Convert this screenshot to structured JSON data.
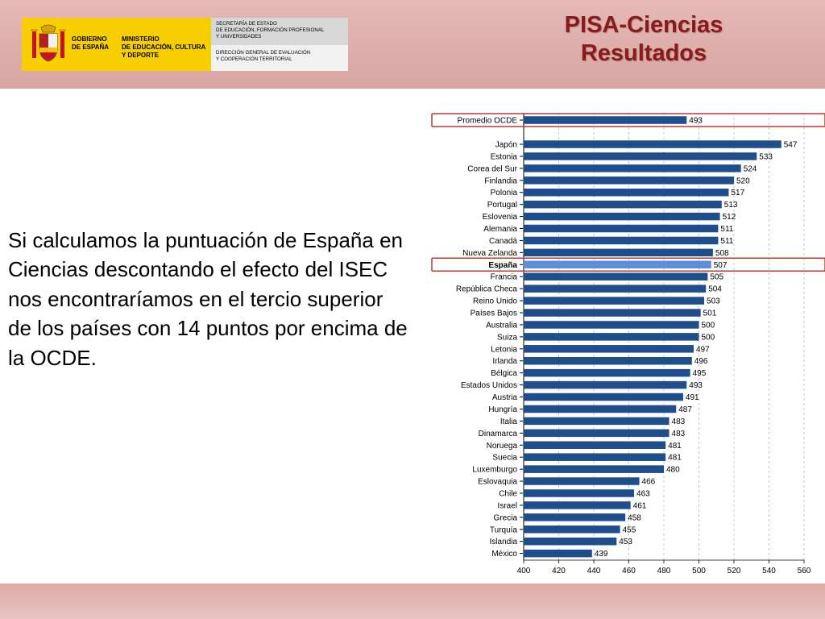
{
  "header": {
    "logo_gov": "GOBIERNO\nDE ESPAÑA",
    "logo_ministry": "MINISTERIO\nDE EDUCACIÓN, CULTURA\nY DEPORTE",
    "logo_secretary": "SECRETARÍA DE ESTADO\nDE EDUCACIÓN, FORMACIÓN PROFESIONAL\nY UNIVERSIDADES",
    "logo_direction": "DIRECCIÓN GENERAL DE EVALUACIÓN\nY COOPERACIÓN TERRITORIAL",
    "title_line1": "PISA-Ciencias",
    "title_line2": "Resultados"
  },
  "body_text": "Si calculamos la puntuación de España en Ciencias descontando el efecto del ISEC nos encontraríamos en el tercio superior de los países con 14 puntos por encima de la OCDE.",
  "colors": {
    "bar": "#1f4e8c",
    "highlight_bar": "#5b8fdc",
    "highlight_box": "#c0392b",
    "title": "#8c1a1a",
    "band": "#dcaaa7"
  },
  "chart_data": {
    "type": "bar",
    "orientation": "horizontal",
    "categories": [
      "Promedio OCDE",
      "Japón",
      "Estonia",
      "Corea del Sur",
      "Finlandia",
      "Polonia",
      "Portugal",
      "Eslovenia",
      "Alemania",
      "Canadá",
      "Nueva Zelanda",
      "España",
      "Francia",
      "República Checa",
      "Reino Unido",
      "Países Bajos",
      "Australia",
      "Suiza",
      "Letonia",
      "Irlanda",
      "Bélgica",
      "Estados Unidos",
      "Austria",
      "Hungría",
      "Italia",
      "Dinamarca",
      "Noruega",
      "Suecia",
      "Luxemburgo",
      "Eslovaquia",
      "Chile",
      "Israel",
      "Grecia",
      "Turquía",
      "Islandia",
      "México"
    ],
    "values": [
      493,
      547,
      533,
      524,
      520,
      517,
      513,
      512,
      511,
      511,
      508,
      507,
      505,
      504,
      503,
      501,
      500,
      500,
      497,
      496,
      495,
      493,
      491,
      487,
      483,
      483,
      481,
      481,
      480,
      466,
      463,
      461,
      458,
      455,
      453,
      439
    ],
    "highlighted": [
      "Promedio OCDE",
      "España"
    ],
    "xlim": [
      400,
      560
    ],
    "xticks": [
      400,
      420,
      440,
      460,
      480,
      500,
      520,
      540,
      560
    ],
    "grid": "vertical dashed",
    "title": "",
    "xlabel": "",
    "ylabel": ""
  }
}
